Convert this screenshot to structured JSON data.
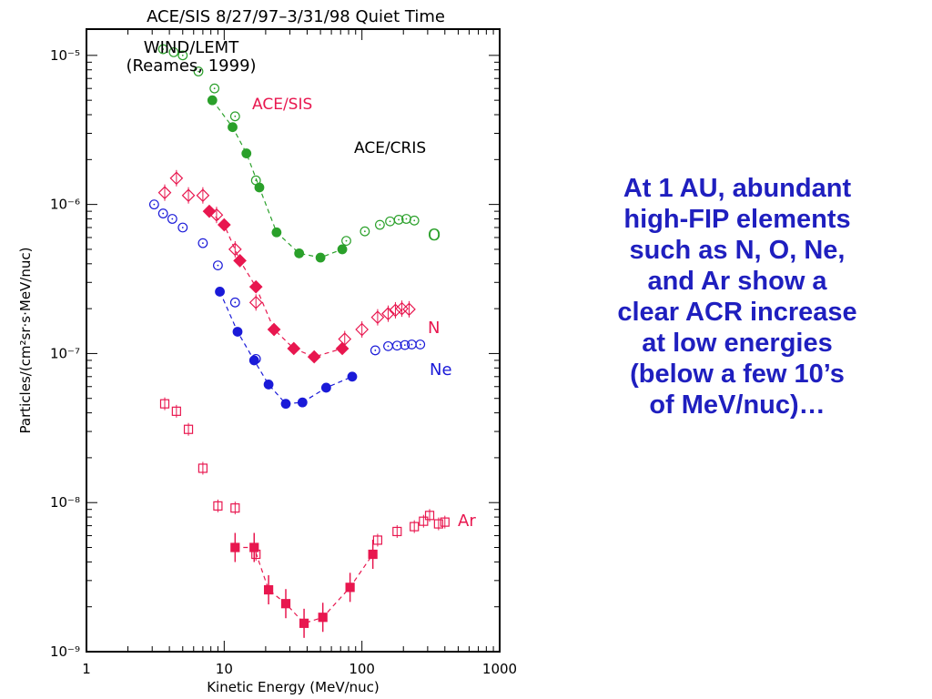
{
  "side_text": [
    "At 1 AU, abundant",
    "high-FIP elements",
    "such as N, O, Ne,",
    "and Ar show a",
    "clear ACR increase",
    "at low energies",
    "(below a few 10’s",
    "of MeV/nuc)…"
  ],
  "colors": {
    "O": "#2aa02a",
    "N": "#e8174f",
    "Ne": "#1a1ad8",
    "Ar": "#e8174f",
    "text": "#1f1fbf"
  },
  "chart_data": {
    "type": "scatter",
    "title": "ACE/SIS 8/27/97–3/31/98 Quiet Time",
    "xlabel": "Kinetic Energy (MeV/nuc)",
    "ylabel": "Particles/(cm²sr·s·MeV/nuc)",
    "xscale": "log",
    "yscale": "log",
    "xlim": [
      1,
      1000
    ],
    "ylim": [
      1e-09,
      1.5e-05
    ],
    "xticks": [
      {
        "v": 1,
        "label": "1"
      },
      {
        "v": 10,
        "label": "10"
      },
      {
        "v": 100,
        "label": "100"
      },
      {
        "v": 1000,
        "label": "1000"
      }
    ],
    "yticks": [
      {
        "v": 1e-09,
        "label": "10⁻⁹"
      },
      {
        "v": 1e-08,
        "label": "10⁻⁸"
      },
      {
        "v": 1e-07,
        "label": "10⁻⁷"
      },
      {
        "v": 1e-06,
        "label": "10⁻⁶"
      },
      {
        "v": 1e-05,
        "label": "10⁻⁵"
      }
    ],
    "instrument_labels": [
      "WIND/LEMT",
      "(Reames, 1999)",
      "ACE/SIS",
      "ACE/CRIS"
    ],
    "series": [
      {
        "name": "O",
        "color": "#2aa02a",
        "open_circle": [
          [
            3.6,
            1.1e-05
          ],
          [
            4.3,
            1.05e-05
          ],
          [
            5.0,
            1e-05
          ],
          [
            6.5,
            7.8e-06
          ],
          [
            8.5,
            6e-06
          ],
          [
            12,
            3.9e-06
          ],
          [
            17,
            1.45e-06
          ],
          [
            77,
            5.7e-07
          ],
          [
            105,
            6.6e-07
          ],
          [
            135,
            7.3e-07
          ],
          [
            160,
            7.7e-07
          ],
          [
            185,
            7.9e-07
          ],
          [
            210,
            8e-07
          ],
          [
            240,
            7.8e-07
          ]
        ],
        "filled_circle": [
          [
            8.2,
            5e-06
          ],
          [
            11.5,
            3.3e-06
          ],
          [
            14.5,
            2.2e-06
          ],
          [
            18,
            1.3e-06
          ],
          [
            24,
            6.5e-07
          ],
          [
            35,
            4.7e-07
          ],
          [
            50,
            4.4e-07
          ],
          [
            72,
            5e-07
          ]
        ]
      },
      {
        "name": "N",
        "color": "#e8174f",
        "open_diamond": [
          [
            3.7,
            1.2e-06
          ],
          [
            4.5,
            1.5e-06
          ],
          [
            5.5,
            1.15e-06
          ],
          [
            7.0,
            1.15e-06
          ],
          [
            8.8,
            8.5e-07
          ],
          [
            12,
            5e-07
          ],
          [
            17,
            2.2e-07
          ],
          [
            75,
            1.25e-07
          ],
          [
            100,
            1.45e-07
          ],
          [
            130,
            1.75e-07
          ],
          [
            155,
            1.85e-07
          ],
          [
            175,
            1.95e-07
          ],
          [
            195,
            2e-07
          ],
          [
            220,
            1.98e-07
          ]
        ],
        "filled_diamond": [
          [
            7.8,
            9e-07
          ],
          [
            10,
            7.3e-07
          ],
          [
            13,
            4.2e-07
          ],
          [
            17,
            2.8e-07
          ],
          [
            23,
            1.45e-07
          ],
          [
            32,
            1.08e-07
          ],
          [
            45,
            9.5e-08
          ],
          [
            72,
            1.08e-07
          ]
        ]
      },
      {
        "name": "Ne",
        "color": "#1a1ad8",
        "open_circle": [
          [
            3.1,
            1e-06
          ],
          [
            3.6,
            8.7e-07
          ],
          [
            4.2,
            8e-07
          ],
          [
            5.0,
            7e-07
          ],
          [
            7.0,
            5.5e-07
          ],
          [
            9.0,
            3.9e-07
          ],
          [
            12,
            2.2e-07
          ],
          [
            17,
            9.2e-08
          ],
          [
            125,
            1.05e-07
          ],
          [
            155,
            1.12e-07
          ],
          [
            180,
            1.13e-07
          ],
          [
            205,
            1.14e-07
          ],
          [
            230,
            1.15e-07
          ],
          [
            265,
            1.15e-07
          ]
        ],
        "filled_circle": [
          [
            9.3,
            2.6e-07
          ],
          [
            12.5,
            1.4e-07
          ],
          [
            16.5,
            9e-08
          ],
          [
            21,
            6.2e-08
          ],
          [
            28,
            4.6e-08
          ],
          [
            37,
            4.7e-08
          ],
          [
            55,
            5.9e-08
          ],
          [
            85,
            7e-08
          ]
        ]
      },
      {
        "name": "Ar",
        "color": "#e8174f",
        "open_square": [
          [
            3.7,
            4.6e-08
          ],
          [
            4.5,
            4.1e-08
          ],
          [
            5.5,
            3.1e-08
          ],
          [
            7.0,
            1.7e-08
          ],
          [
            9.0,
            9.5e-09
          ],
          [
            12,
            9.2e-09
          ],
          [
            17,
            4.5e-09
          ],
          [
            130,
            5.6e-09
          ],
          [
            180,
            6.4e-09
          ],
          [
            240,
            6.9e-09
          ],
          [
            280,
            7.5e-09
          ],
          [
            310,
            8.2e-09
          ],
          [
            360,
            7.2e-09
          ],
          [
            400,
            7.4e-09
          ]
        ],
        "filled_square": [
          [
            12,
            5e-09
          ],
          [
            16.5,
            5e-09
          ],
          [
            21,
            2.6e-09
          ],
          [
            28,
            2.1e-09
          ],
          [
            38,
            1.55e-09
          ],
          [
            52,
            1.7e-09
          ],
          [
            82,
            2.7e-09
          ],
          [
            120,
            4.5e-09
          ]
        ]
      }
    ],
    "legend": [
      "O",
      "N",
      "Ne",
      "Ar"
    ]
  }
}
